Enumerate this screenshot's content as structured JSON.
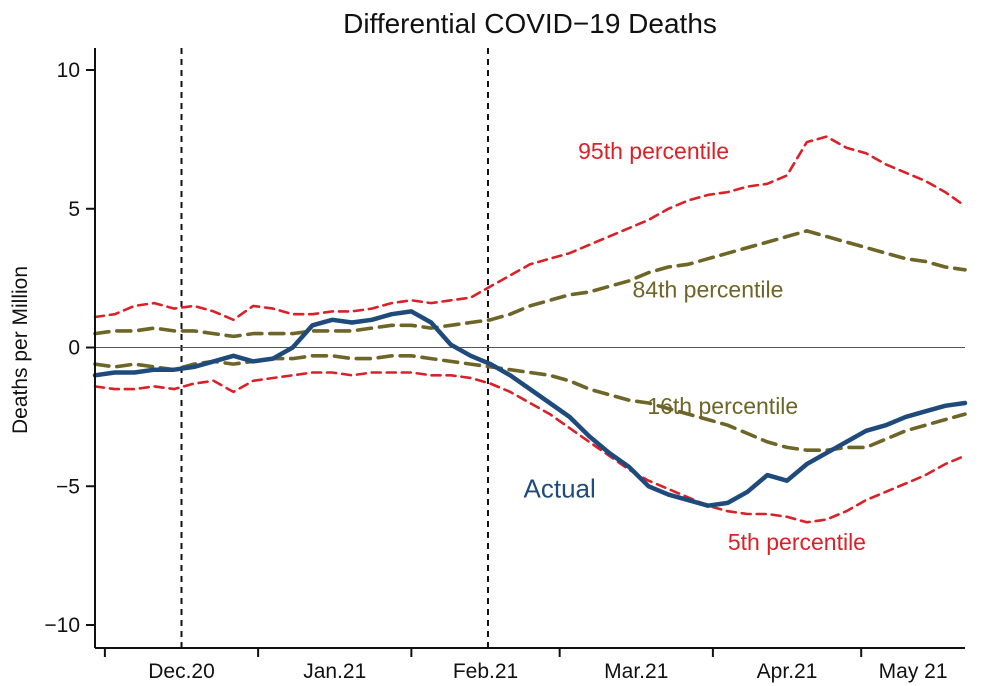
{
  "chart_data": {
    "type": "line",
    "title": "Differential COVID−19 Deaths",
    "xlabel": "",
    "ylabel": "Deaths per Million",
    "ylim": [
      -10.9,
      10.8
    ],
    "xlim": [
      0,
      176
    ],
    "grid": false,
    "legend_position": "inline-annotations",
    "x": [
      0,
      4,
      8,
      12,
      16,
      20,
      24,
      28,
      32,
      36,
      40,
      44,
      48,
      52,
      56,
      60,
      64,
      68,
      72,
      76,
      80,
      84,
      88,
      92,
      96,
      100,
      104,
      108,
      112,
      116,
      120,
      124,
      128,
      132,
      136,
      140,
      144,
      148,
      152,
      156,
      160,
      164,
      168,
      172,
      176
    ],
    "series": [
      {
        "name": "95th percentile",
        "color": "#da2128",
        "style": "dashed",
        "dash": "9 6",
        "width": 2.6,
        "values": [
          1.1,
          1.2,
          1.5,
          1.6,
          1.4,
          1.5,
          1.3,
          1.0,
          1.5,
          1.4,
          1.2,
          1.2,
          1.3,
          1.3,
          1.4,
          1.6,
          1.7,
          1.6,
          1.7,
          1.8,
          2.2,
          2.6,
          3.0,
          3.2,
          3.4,
          3.7,
          4.0,
          4.3,
          4.6,
          5.0,
          5.3,
          5.5,
          5.6,
          5.8,
          5.9,
          6.2,
          7.4,
          7.6,
          7.2,
          7.0,
          6.6,
          6.3,
          6.0,
          5.6,
          5.1
        ]
      },
      {
        "name": "84th percentile",
        "color": "#6e6528",
        "style": "dashed",
        "dash": "14 8",
        "width": 3.6,
        "values": [
          0.5,
          0.6,
          0.6,
          0.7,
          0.6,
          0.6,
          0.5,
          0.4,
          0.5,
          0.5,
          0.5,
          0.6,
          0.6,
          0.6,
          0.7,
          0.8,
          0.8,
          0.7,
          0.8,
          0.9,
          1.0,
          1.2,
          1.5,
          1.7,
          1.9,
          2.0,
          2.2,
          2.4,
          2.7,
          2.9,
          3.0,
          3.2,
          3.4,
          3.6,
          3.8,
          4.0,
          4.2,
          4.0,
          3.8,
          3.6,
          3.4,
          3.2,
          3.1,
          2.9,
          2.8
        ]
      },
      {
        "name": "16th percentile",
        "color": "#6e6528",
        "style": "dashed",
        "dash": "14 8",
        "width": 3.6,
        "values": [
          -0.6,
          -0.7,
          -0.6,
          -0.7,
          -0.8,
          -0.6,
          -0.5,
          -0.6,
          -0.5,
          -0.4,
          -0.4,
          -0.3,
          -0.3,
          -0.4,
          -0.4,
          -0.3,
          -0.3,
          -0.4,
          -0.5,
          -0.6,
          -0.7,
          -0.8,
          -0.9,
          -1.0,
          -1.2,
          -1.5,
          -1.7,
          -1.9,
          -2.0,
          -2.2,
          -2.4,
          -2.6,
          -2.8,
          -3.1,
          -3.4,
          -3.6,
          -3.7,
          -3.7,
          -3.6,
          -3.6,
          -3.3,
          -3.0,
          -2.8,
          -2.6,
          -2.4
        ]
      },
      {
        "name": "5th percentile",
        "color": "#da2128",
        "style": "dashed",
        "dash": "9 6",
        "width": 2.6,
        "values": [
          -1.4,
          -1.5,
          -1.5,
          -1.4,
          -1.5,
          -1.3,
          -1.2,
          -1.6,
          -1.2,
          -1.1,
          -1.0,
          -0.9,
          -0.9,
          -1.0,
          -0.9,
          -0.9,
          -0.9,
          -1.0,
          -1.0,
          -1.1,
          -1.3,
          -1.6,
          -2.0,
          -2.4,
          -2.9,
          -3.4,
          -3.9,
          -4.4,
          -4.8,
          -5.1,
          -5.4,
          -5.7,
          -5.9,
          -6.0,
          -6.0,
          -6.1,
          -6.3,
          -6.2,
          -5.9,
          -5.5,
          -5.2,
          -4.9,
          -4.6,
          -4.2,
          -3.9
        ]
      },
      {
        "name": "Actual",
        "color": "#1f4b7c",
        "style": "solid",
        "dash": null,
        "width": 4.5,
        "values": [
          -1.0,
          -0.9,
          -0.9,
          -0.8,
          -0.8,
          -0.7,
          -0.5,
          -0.3,
          -0.5,
          -0.4,
          0.0,
          0.8,
          1.0,
          0.9,
          1.0,
          1.2,
          1.3,
          0.9,
          0.1,
          -0.3,
          -0.6,
          -1.0,
          -1.5,
          -2.0,
          -2.5,
          -3.2,
          -3.8,
          -4.3,
          -5.0,
          -5.3,
          -5.5,
          -5.7,
          -5.6,
          -5.2,
          -4.6,
          -4.8,
          -4.2,
          -3.8,
          -3.4,
          -3.0,
          -2.8,
          -2.5,
          -2.3,
          -2.1,
          -2.0
        ]
      }
    ],
    "y_ticks": [
      {
        "v": 10,
        "t": "10"
      },
      {
        "v": 5,
        "t": "5"
      },
      {
        "v": 0,
        "t": "0"
      },
      {
        "v": -5,
        "t": "−5"
      },
      {
        "v": -10,
        "t": "−10"
      }
    ],
    "x_month_boundary_ticks": [
      2,
      33,
      64,
      94,
      125,
      155
    ],
    "x_labels": [
      {
        "pos": 17.5,
        "t": "Dec.20"
      },
      {
        "pos": 48.5,
        "t": "Jan.21"
      },
      {
        "pos": 79.0,
        "t": "Feb.21"
      },
      {
        "pos": 109.5,
        "t": "Mar.21"
      },
      {
        "pos": 140.0,
        "t": "Apr.21"
      },
      {
        "pos": 165.5,
        "t": "May 21"
      }
    ],
    "reference_lines": {
      "horizontal_y": 0,
      "vertical_dashed_x": [
        17.5,
        79.5
      ]
    },
    "annotations": [
      {
        "text": "95th percentile",
        "x": 113,
        "y": 6.8,
        "color": "#da2128",
        "size": 23
      },
      {
        "text": "84th percentile",
        "x": 124,
        "y": 1.8,
        "color": "#6e6528",
        "size": 23
      },
      {
        "text": "16th percentile",
        "x": 127,
        "y": -2.4,
        "color": "#6e6528",
        "size": 23
      },
      {
        "text": "Actual",
        "x": 94,
        "y": -5.4,
        "color": "#1f4b7c",
        "size": 26
      },
      {
        "text": "5th percentile",
        "x": 142,
        "y": -7.3,
        "color": "#da2128",
        "size": 23
      }
    ]
  }
}
